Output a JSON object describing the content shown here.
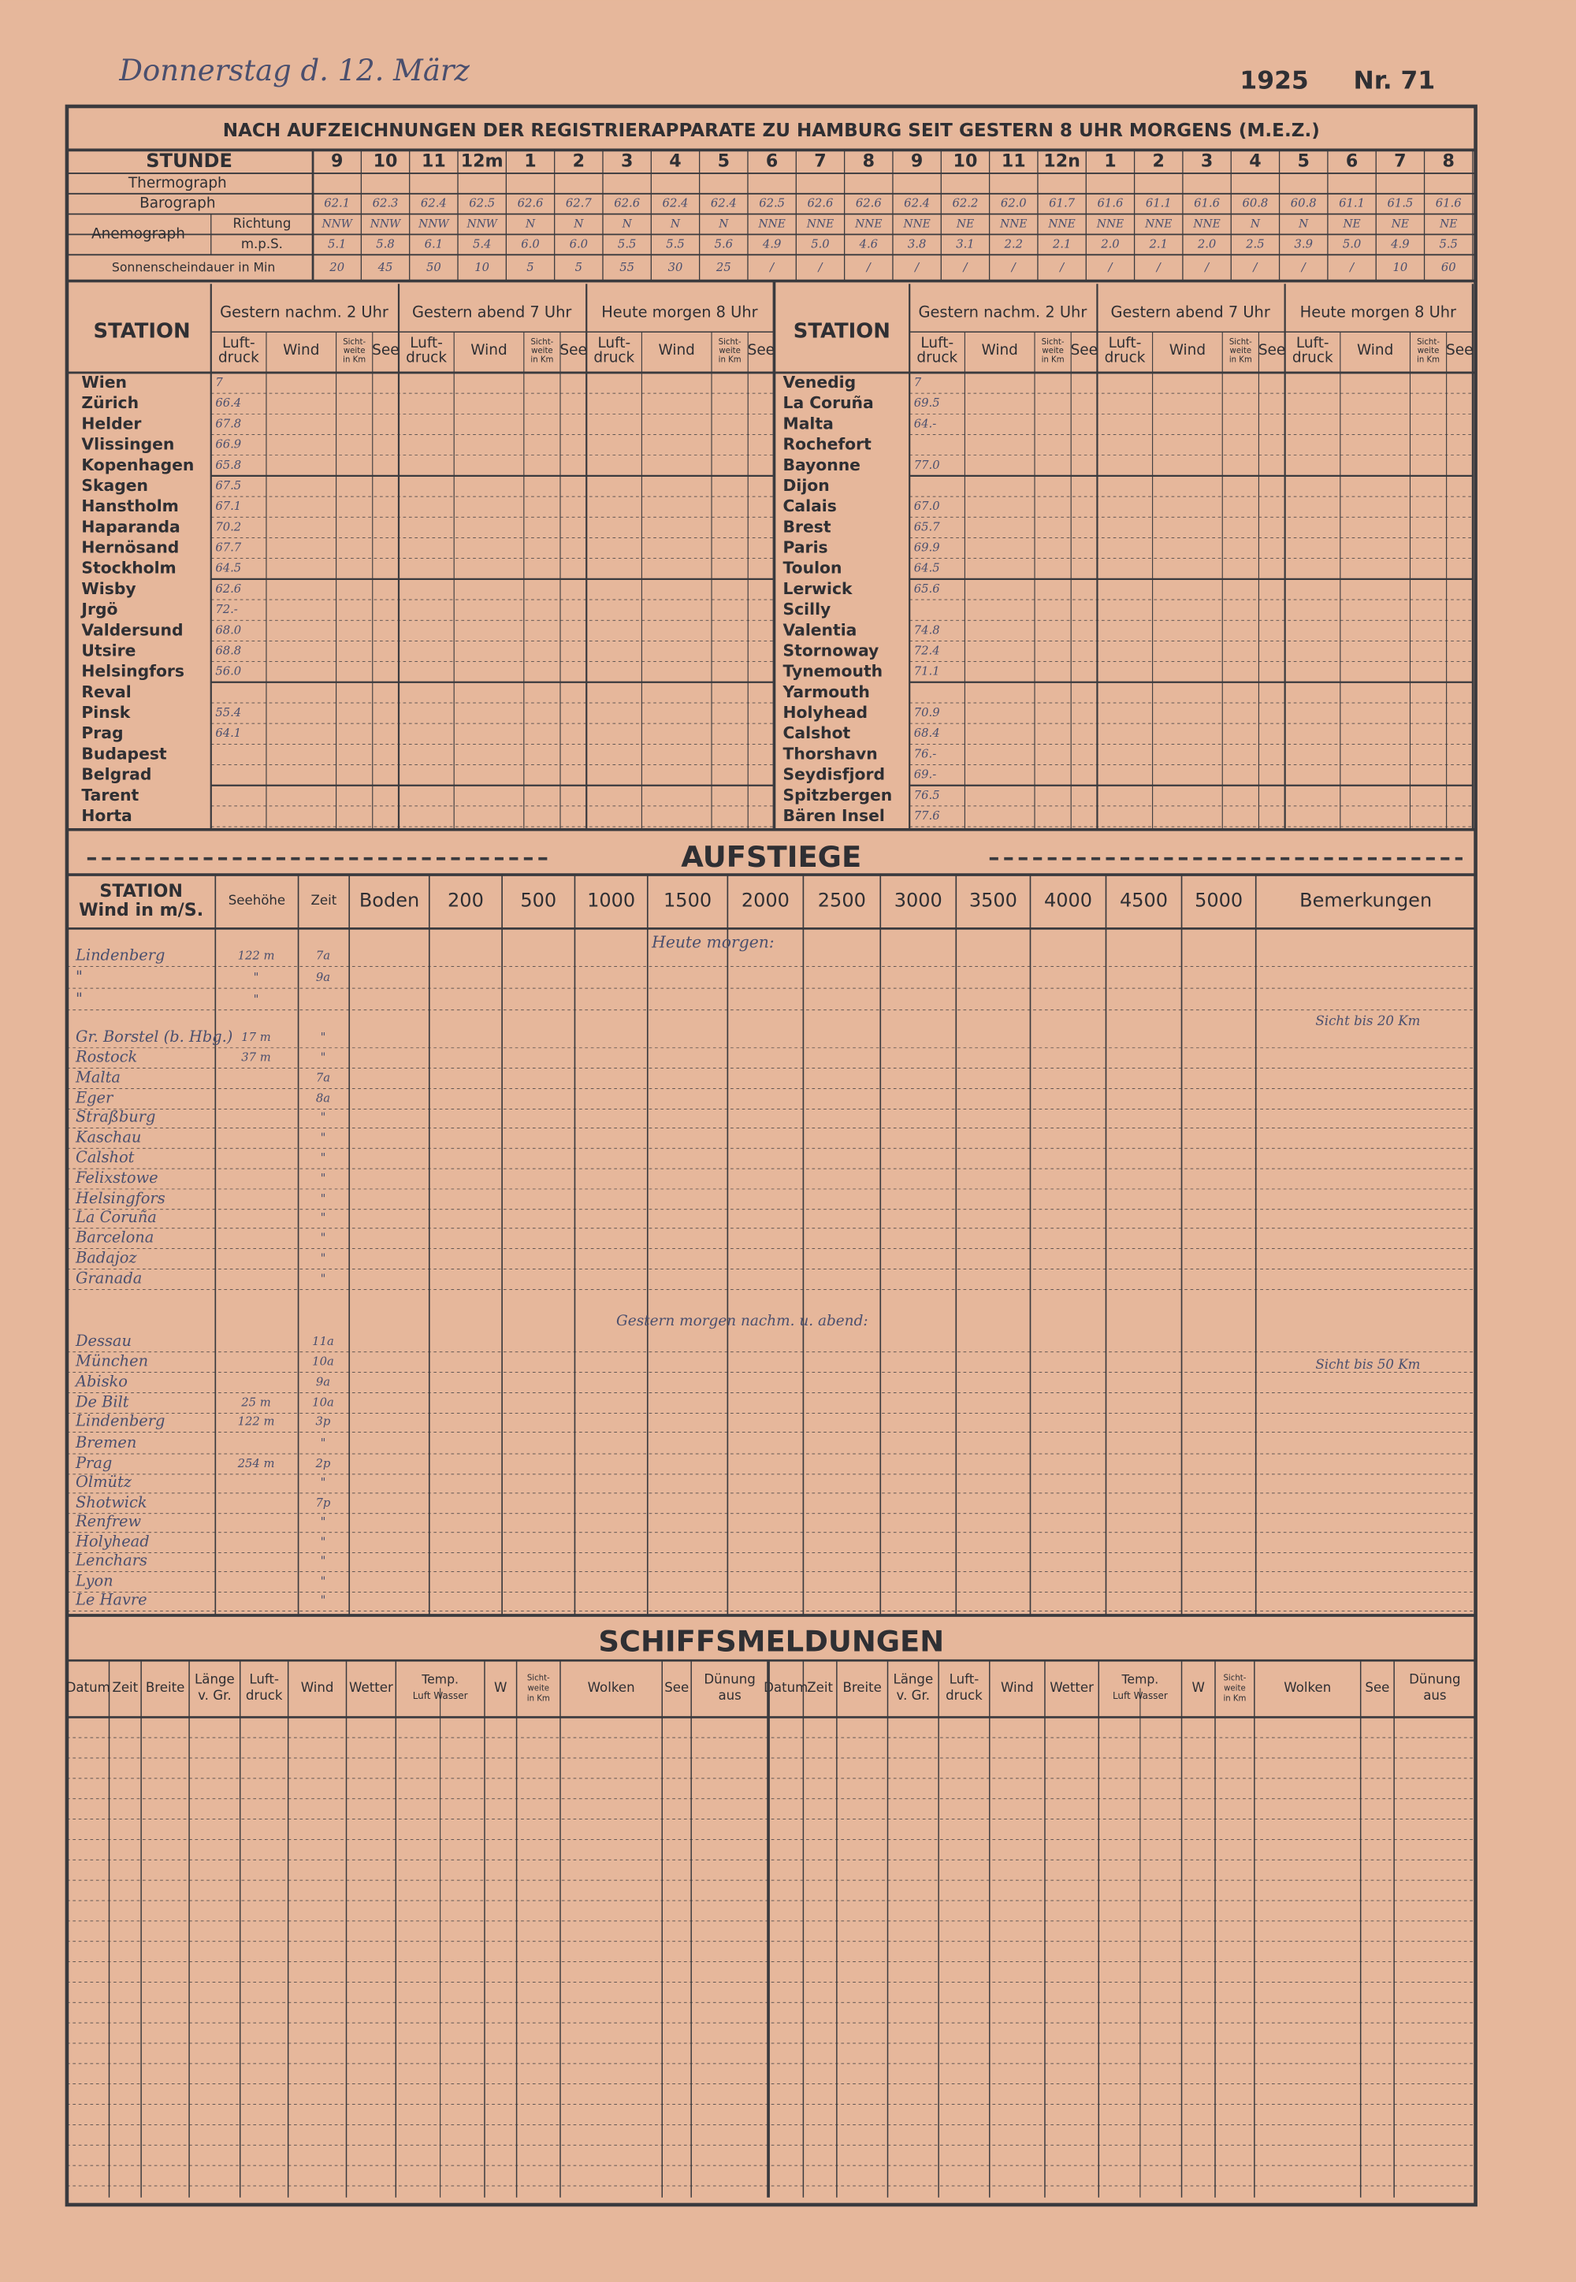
{
  "header": {
    "date": "Donnerstag d. 12. März",
    "year": "1925",
    "number": "Nr. 71",
    "title": "NACH AUFZEICHNUNGEN DER REGISTRIERAPPARATE ZU HAMBURG SEIT GESTERN 8 UHR MORGENS (M.E.Z.)"
  },
  "hourly": {
    "label": "STUNDE",
    "hours": [
      "9",
      "10",
      "11",
      "12m",
      "1",
      "2",
      "3",
      "4",
      "5",
      "6",
      "7",
      "8",
      "9",
      "10",
      "11",
      "12n",
      "1",
      "2",
      "3",
      "4",
      "5",
      "6",
      "7",
      "8"
    ],
    "thermograph": {
      "label": "Thermograph"
    },
    "barograph": {
      "label": "Barograph",
      "values": [
        "62.1",
        "62.3",
        "62.4",
        "62.5",
        "62.6",
        "62.7",
        "62.6",
        "62.4",
        "62.4",
        "62.5",
        "62.6",
        "62.6",
        "62.4",
        "62.2",
        "62.0",
        "61.7",
        "61.6",
        "61.1",
        "61.6",
        "60.8",
        "60.8",
        "61.1",
        "61.5",
        "61.6"
      ]
    },
    "anemograph": {
      "label": "Anemograph",
      "direction": {
        "label": "Richtung",
        "values": [
          "NNW",
          "NNW",
          "NNW",
          "NNW",
          "N",
          "N",
          "N",
          "N",
          "N",
          "NNE",
          "NNE",
          "NNE",
          "NNE",
          "NE",
          "NNE",
          "NNE",
          "NNE",
          "NNE",
          "NNE",
          "N",
          "N",
          "NE",
          "NE",
          "NE"
        ]
      },
      "speed": {
        "label": "m.p.S.",
        "values": [
          "5.1",
          "5.8",
          "6.1",
          "5.4",
          "6.0",
          "6.0",
          "5.5",
          "5.5",
          "5.6",
          "4.9",
          "5.0",
          "4.6",
          "3.8",
          "3.1",
          "2.2",
          "2.1",
          "2.0",
          "2.1",
          "2.0",
          "2.5",
          "3.9",
          "5.0",
          "4.9",
          "5.5"
        ]
      }
    },
    "sunshine": {
      "label": "Sonnenscheindauer in Min",
      "values": [
        "20",
        "45",
        "50",
        "10",
        "5",
        "5",
        "55",
        "30",
        "25",
        "/",
        "/",
        "/",
        "/",
        "/",
        "/",
        "/",
        "/",
        "/",
        "/",
        "/",
        "/",
        "/",
        "10",
        "60"
      ]
    }
  },
  "station_table": {
    "station_label": "STATION",
    "groups": [
      "Gestern nachm. 2 Uhr",
      "Gestern abend 7 Uhr",
      "Heute morgen 8 Uhr"
    ],
    "subheads": [
      [
        "Luft-",
        "druck"
      ],
      [
        "Wind"
      ],
      [
        "Sicht-",
        "weite",
        "in Km"
      ],
      [
        "See"
      ]
    ],
    "left": [
      {
        "name": "Wien",
        "p": "7"
      },
      {
        "name": "Zürich",
        "p": "66.4"
      },
      {
        "name": "Helder",
        "p": "67.8"
      },
      {
        "name": "Vlissingen",
        "p": "66.9"
      },
      {
        "name": "Kopenhagen",
        "p": "65.8"
      },
      {
        "name": "Skagen",
        "p": "67.5"
      },
      {
        "name": "Hanstholm",
        "p": "67.1"
      },
      {
        "name": "Haparanda",
        "p": "70.2"
      },
      {
        "name": "Hernösand",
        "p": "67.7"
      },
      {
        "name": "Stockholm",
        "p": "64.5"
      },
      {
        "name": "Wisby",
        "p": "62.6"
      },
      {
        "name": "Jrgö",
        "p": "72.-"
      },
      {
        "name": "Valdersund",
        "p": "68.0"
      },
      {
        "name": "Utsire",
        "p": "68.8"
      },
      {
        "name": "Helsingfors",
        "p": "56.0"
      },
      {
        "name": "Reval",
        "p": null
      },
      {
        "name": "Pinsk",
        "p": "55.4"
      },
      {
        "name": "Prag",
        "p": "64.1"
      },
      {
        "name": "Budapest",
        "p": null
      },
      {
        "name": "Belgrad",
        "p": null
      },
      {
        "name": "Tarent",
        "p": null
      },
      {
        "name": "Horta",
        "p": null
      }
    ],
    "right": [
      {
        "name": "Venedig",
        "p": "7"
      },
      {
        "name": "La Coruña",
        "p": "69.5"
      },
      {
        "name": "Malta",
        "p": "64.-"
      },
      {
        "name": "Rochefort",
        "p": null
      },
      {
        "name": "Bayonne",
        "p": "77.0"
      },
      {
        "name": "Dijon",
        "p": null
      },
      {
        "name": "Calais",
        "p": "67.0"
      },
      {
        "name": "Brest",
        "p": "65.7"
      },
      {
        "name": "Paris",
        "p": "69.9"
      },
      {
        "name": "Toulon",
        "p": "64.5"
      },
      {
        "name": "Lerwick",
        "p": "65.6"
      },
      {
        "name": "Scilly",
        "p": null
      },
      {
        "name": "Valentia",
        "p": "74.8"
      },
      {
        "name": "Stornoway",
        "p": "72.4"
      },
      {
        "name": "Tynemouth",
        "p": "71.1"
      },
      {
        "name": "Yarmouth",
        "p": null
      },
      {
        "name": "Holyhead",
        "p": "70.9"
      },
      {
        "name": "Calshot",
        "p": "68.4"
      },
      {
        "name": "Thorshavn",
        "p": "76.-"
      },
      {
        "name": "Seydisfjord",
        "p": "69.-"
      },
      {
        "name": "Spitzbergen",
        "p": "76.5"
      },
      {
        "name": "Bären Insel",
        "p": "77.6"
      }
    ]
  },
  "aufstiege": {
    "title": "AUFSTIEGE",
    "headers": [
      [
        "STATION",
        "Wind in m/S."
      ],
      [
        "Seehöhe"
      ],
      [
        "Zeit"
      ],
      [
        "Boden"
      ],
      [
        "200"
      ],
      [
        "500"
      ],
      [
        "1000"
      ],
      [
        "1500"
      ],
      [
        "2000"
      ],
      [
        "2500"
      ],
      [
        "3000"
      ],
      [
        "3500"
      ],
      [
        "4000"
      ],
      [
        "4500"
      ],
      [
        "5000"
      ],
      [
        "Bemerkungen"
      ]
    ],
    "note_morning": "Heute morgen:",
    "note_yesterday": "Gestern morgen nachm. u. abend:",
    "rows": [
      {
        "station": "Lindenberg",
        "height": "122 m",
        "time": "7a"
      },
      {
        "station": "\"",
        "height": "\"",
        "time": "9a"
      },
      {
        "station": "\"",
        "height": "\"",
        "time": null
      },
      {
        "station": "Gr. Borstel (b. Hbg.)",
        "height": "17 m",
        "time": "\""
      },
      {
        "station": "Rostock",
        "height": "37 m",
        "time": "\""
      },
      {
        "station": "Malta",
        "height": null,
        "time": "7a"
      },
      {
        "station": "Eger",
        "height": null,
        "time": "8a"
      },
      {
        "station": "Straßburg",
        "height": null,
        "time": "\""
      },
      {
        "station": "Kaschau",
        "height": null,
        "time": "\""
      },
      {
        "station": "Calshot",
        "height": null,
        "time": "\""
      },
      {
        "station": "Felixstowe",
        "height": null,
        "time": "\""
      },
      {
        "station": "Helsingfors",
        "height": null,
        "time": "\""
      },
      {
        "station": "La Coruña",
        "height": null,
        "time": "\""
      },
      {
        "station": "Barcelona",
        "height": null,
        "time": "\""
      },
      {
        "station": "Badajoz",
        "height": null,
        "time": "\""
      },
      {
        "station": "Granada",
        "height": null,
        "time": "\""
      },
      {
        "station": "Dessau",
        "height": null,
        "time": "11a"
      },
      {
        "station": "München",
        "height": null,
        "time": "10a"
      },
      {
        "station": "Abisko",
        "height": null,
        "time": "9a"
      },
      {
        "station": "De Bilt",
        "height": "25 m",
        "time": "10a"
      },
      {
        "station": "Lindenberg",
        "height": "122 m",
        "time": "3p"
      },
      {
        "station": "Bremen",
        "height": null,
        "time": "\""
      },
      {
        "station": "Prag",
        "height": "254 m",
        "time": "2p"
      },
      {
        "station": "Olmütz",
        "height": null,
        "time": "\""
      },
      {
        "station": "Shotwick",
        "height": null,
        "time": "7p"
      },
      {
        "station": "Renfrew",
        "height": null,
        "time": "\""
      },
      {
        "station": "Holyhead",
        "height": null,
        "time": "\""
      },
      {
        "station": "Lenchars",
        "height": null,
        "time": "\""
      },
      {
        "station": "Lyon",
        "height": null,
        "time": "\""
      },
      {
        "station": "Le Havre",
        "height": null,
        "time": "\""
      }
    ],
    "remarks": [
      "Sicht bis 20 Km",
      "Sicht bis 50 Km"
    ]
  },
  "schiffsmeldungen": {
    "title": "SCHIFFSMELDUNGEN",
    "headers": [
      [
        "Datum"
      ],
      [
        "Zeit"
      ],
      [
        "Breite"
      ],
      [
        "Länge",
        "v. Gr."
      ],
      [
        "Luft-",
        "druck"
      ],
      [
        "Wind"
      ],
      [
        "Wetter"
      ],
      [
        "Temp.",
        "Luft Wasser"
      ],
      [
        "W"
      ],
      [
        "Sicht-",
        "weite",
        "in Km"
      ],
      [
        "Wolken"
      ],
      [
        "See"
      ],
      [
        "Dünung",
        "aus"
      ]
    ]
  }
}
